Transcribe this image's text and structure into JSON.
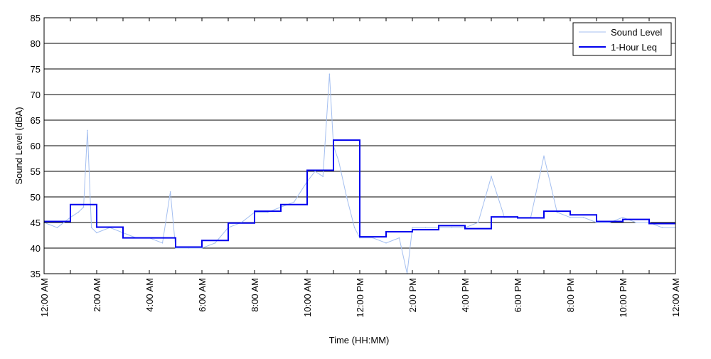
{
  "chart_data": {
    "type": "line",
    "xlabel": "Time (HH:MM)",
    "ylabel": "Sound Level (dBA)",
    "ylim": [
      35,
      85
    ],
    "y_ticks": [
      35,
      40,
      45,
      50,
      55,
      60,
      65,
      70,
      75,
      80,
      85
    ],
    "xlim": [
      0,
      24
    ],
    "x_ticks": [
      0,
      2,
      4,
      6,
      8,
      10,
      12,
      14,
      16,
      18,
      20,
      22,
      24
    ],
    "x_tick_labels": [
      "12:00 AM",
      "2:00 AM",
      "4:00 AM",
      "6:00 AM",
      "8:00 AM",
      "10:00 AM",
      "12:00 PM",
      "2:00 PM",
      "4:00 PM",
      "6:00 PM",
      "8:00 PM",
      "10:00 PM",
      "12:00 AM"
    ],
    "x_unit": "hour of day",
    "grid": {
      "horizontal": true,
      "vertical": false
    },
    "legend_position": "top-right",
    "series": [
      {
        "name": "Sound Level",
        "style": "thin-line",
        "color": "#a4bff0",
        "x": [
          0,
          0.5,
          1,
          1.3,
          1.5,
          1.65,
          1.8,
          2,
          2.5,
          3,
          3.5,
          4,
          4.5,
          4.8,
          5,
          5.5,
          6,
          6.5,
          7,
          7.5,
          8,
          8.5,
          9,
          9.5,
          10,
          10.3,
          10.6,
          10.85,
          11,
          11.2,
          11.5,
          11.8,
          12,
          12.5,
          13,
          13.5,
          13.8,
          14,
          14.5,
          15,
          15.5,
          16,
          16.5,
          17,
          17.5,
          18,
          18.5,
          19,
          19.5,
          20,
          20.5,
          21,
          21.5,
          22,
          22.5,
          23,
          23.5,
          24
        ],
        "values": [
          45,
          44,
          46,
          47,
          48,
          63,
          44,
          43,
          44,
          43,
          42,
          42,
          41,
          51,
          40,
          40,
          40,
          41,
          44,
          45,
          47,
          47,
          48,
          49,
          53,
          55,
          54,
          74,
          60,
          57,
          50,
          44,
          42,
          42,
          41,
          42,
          35,
          44,
          44,
          44,
          44,
          44,
          45,
          54,
          46,
          46,
          46,
          58,
          47,
          46,
          46,
          45,
          45,
          46,
          45,
          45,
          44,
          44
        ]
      },
      {
        "name": "1-Hour Leq",
        "style": "step",
        "color": "#0000ee",
        "x": [
          0,
          1,
          2,
          3,
          4,
          5,
          6,
          7,
          8,
          9,
          10,
          11,
          12,
          13,
          14,
          15,
          16,
          17,
          18,
          19,
          20,
          21,
          22,
          23
        ],
        "values": [
          45.2,
          48.5,
          44.1,
          42.0,
          42.0,
          40.2,
          41.5,
          44.9,
          47.2,
          48.5,
          55.2,
          61.1,
          42.2,
          43.2,
          43.6,
          44.4,
          43.8,
          46.1,
          45.9,
          47.2,
          46.5,
          45.2,
          45.6,
          44.8
        ]
      }
    ]
  }
}
